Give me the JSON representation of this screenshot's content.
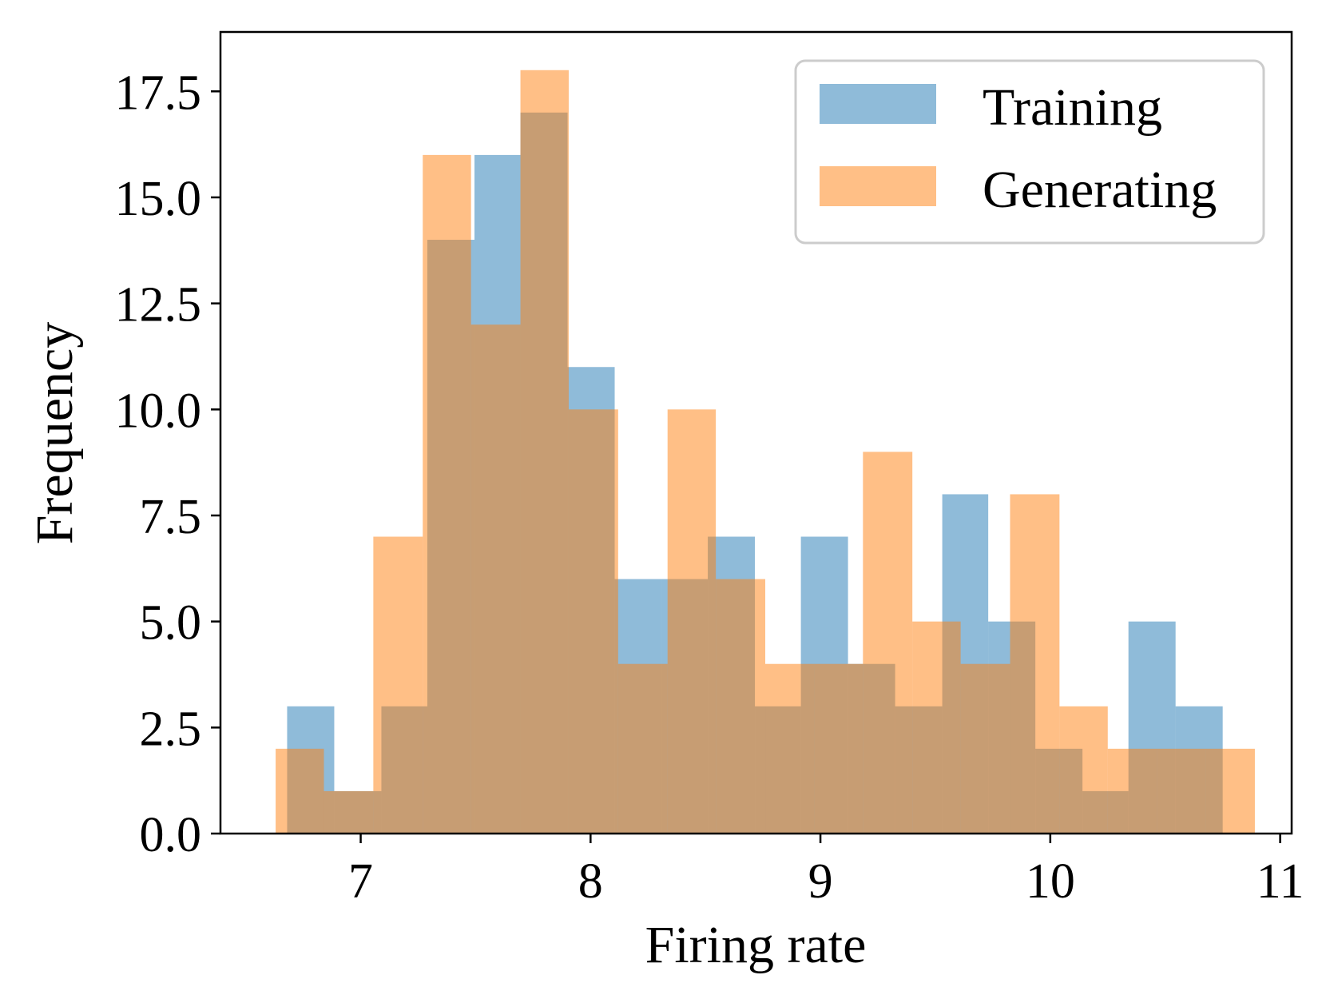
{
  "chart_data": {
    "type": "histogram",
    "title": "",
    "xlabel": "Firing rate",
    "ylabel": "Frequency",
    "xlim": [
      6.39,
      11.05
    ],
    "ylim": [
      0,
      18.9
    ],
    "x_ticks": [
      7,
      8,
      9,
      10,
      11
    ],
    "x_tick_labels": [
      "7",
      "8",
      "9",
      "10",
      "11"
    ],
    "y_ticks": [
      0,
      2.5,
      5,
      7.5,
      10,
      12.5,
      15,
      17.5
    ],
    "y_tick_labels": [
      "0.0",
      "2.5",
      "5.0",
      "7.5",
      "10.0",
      "12.5",
      "15.0",
      "17.5"
    ],
    "grid": false,
    "legend_position": "top-right",
    "series": [
      {
        "name": "Training",
        "color": "#1f77b4",
        "opacity": 0.5,
        "bin_edges": [
          6.68,
          6.885,
          7.09,
          7.29,
          7.495,
          7.695,
          7.9,
          8.105,
          8.31,
          8.51,
          8.715,
          8.915,
          9.12,
          9.325,
          9.53,
          9.73,
          9.935,
          10.14,
          10.34,
          10.545,
          10.75
        ],
        "counts": [
          3,
          1,
          3,
          14,
          16,
          17,
          11,
          6,
          6,
          7,
          3,
          7,
          4,
          3,
          8,
          5,
          2,
          1,
          5,
          3
        ]
      },
      {
        "name": "Generating",
        "color": "#ff7f0e",
        "opacity": 0.5,
        "bin_edges": [
          6.63,
          6.84,
          7.055,
          7.27,
          7.48,
          7.695,
          7.905,
          8.12,
          8.335,
          8.545,
          8.76,
          8.975,
          9.185,
          9.4,
          9.61,
          9.825,
          10.04,
          10.25,
          10.465,
          10.675,
          10.89
        ],
        "counts": [
          2,
          1,
          7,
          16,
          12,
          18,
          10,
          4,
          10,
          6,
          4,
          4,
          9,
          5,
          4,
          8,
          3,
          2,
          2,
          2
        ]
      }
    ]
  }
}
